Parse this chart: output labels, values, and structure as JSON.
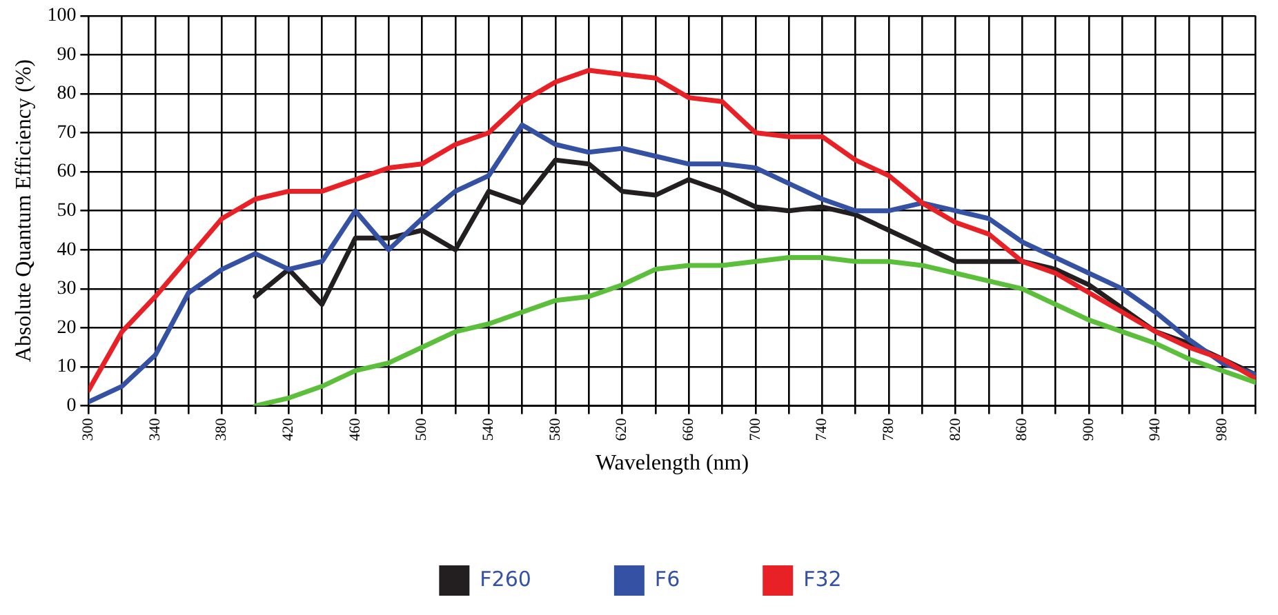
{
  "chart_data": {
    "type": "line",
    "xlabel": "Wavelength (nm)",
    "ylabel": "Absolute Quantum Efficiency (%)",
    "x": [
      300,
      320,
      340,
      360,
      380,
      400,
      420,
      440,
      460,
      480,
      500,
      520,
      540,
      560,
      580,
      600,
      620,
      640,
      660,
      680,
      700,
      720,
      740,
      760,
      780,
      800,
      820,
      840,
      860,
      880,
      900,
      920,
      940,
      960,
      980,
      1000
    ],
    "series": [
      {
        "name": "F260",
        "color": "#231f20",
        "values": [
          null,
          null,
          null,
          null,
          null,
          28,
          35,
          26,
          43,
          43,
          45,
          40,
          55,
          52,
          63,
          62,
          55,
          54,
          58,
          55,
          51,
          50,
          51,
          49,
          45,
          41,
          37,
          37,
          37,
          35,
          31,
          25,
          19,
          16,
          12,
          8
        ]
      },
      {
        "name": "F6",
        "color": "#3451a3",
        "values": [
          1,
          5,
          13,
          29,
          35,
          39,
          35,
          37,
          50,
          40,
          48,
          55,
          59,
          72,
          67,
          65,
          66,
          64,
          62,
          62,
          61,
          57,
          53,
          50,
          50,
          52,
          50,
          48,
          42,
          38,
          34,
          30,
          24,
          17,
          11,
          8
        ]
      },
      {
        "name": "F32",
        "color": "#e82127",
        "values": [
          4,
          19,
          28,
          38,
          48,
          53,
          55,
          55,
          58,
          61,
          62,
          67,
          70,
          78,
          83,
          86,
          85,
          84,
          79,
          78,
          70,
          69,
          69,
          63,
          59,
          52,
          47,
          44,
          37,
          34,
          29,
          24,
          19,
          15,
          12,
          7
        ]
      },
      {
        "color": "#5cbf3c",
        "values": [
          null,
          null,
          null,
          null,
          null,
          0,
          2,
          5,
          9,
          11,
          15,
          19,
          21,
          24,
          27,
          28,
          31,
          35,
          36,
          36,
          37,
          38,
          38,
          37,
          37,
          36,
          34,
          32,
          30,
          26,
          22,
          19,
          16,
          12,
          9,
          6
        ]
      }
    ],
    "xlim": [
      300,
      1000
    ],
    "ylim": [
      0,
      100
    ],
    "xticks": [
      300,
      {
        "value": 320,
        "label": null
      },
      340,
      {
        "value": 360,
        "label": null
      },
      380,
      {
        "value": 400,
        "label": null
      },
      420,
      {
        "value": 440,
        "label": null
      },
      460,
      {
        "value": 480,
        "label": null
      },
      500,
      {
        "value": 520,
        "label": null
      },
      540,
      {
        "value": 560,
        "label": null
      },
      580,
      {
        "value": 600,
        "label": null
      },
      620,
      {
        "value": 640,
        "label": null
      },
      660,
      {
        "value": 680,
        "label": null
      },
      700,
      {
        "value": 720,
        "label": null
      },
      740,
      {
        "value": 760,
        "label": null
      },
      780,
      {
        "value": 800,
        "label": null
      },
      820,
      {
        "value": 840,
        "label": null
      },
      860,
      {
        "value": 880,
        "label": null
      },
      900,
      {
        "value": 920,
        "label": null
      },
      940,
      {
        "value": 960,
        "label": null
      },
      980,
      {
        "value": 1000,
        "label": null
      }
    ],
    "yticks": [
      0,
      10,
      20,
      30,
      40,
      50,
      60,
      70,
      80,
      90,
      100
    ],
    "grid": true,
    "legend": "bottom",
    "marker": "none",
    "line_style": "solid"
  }
}
